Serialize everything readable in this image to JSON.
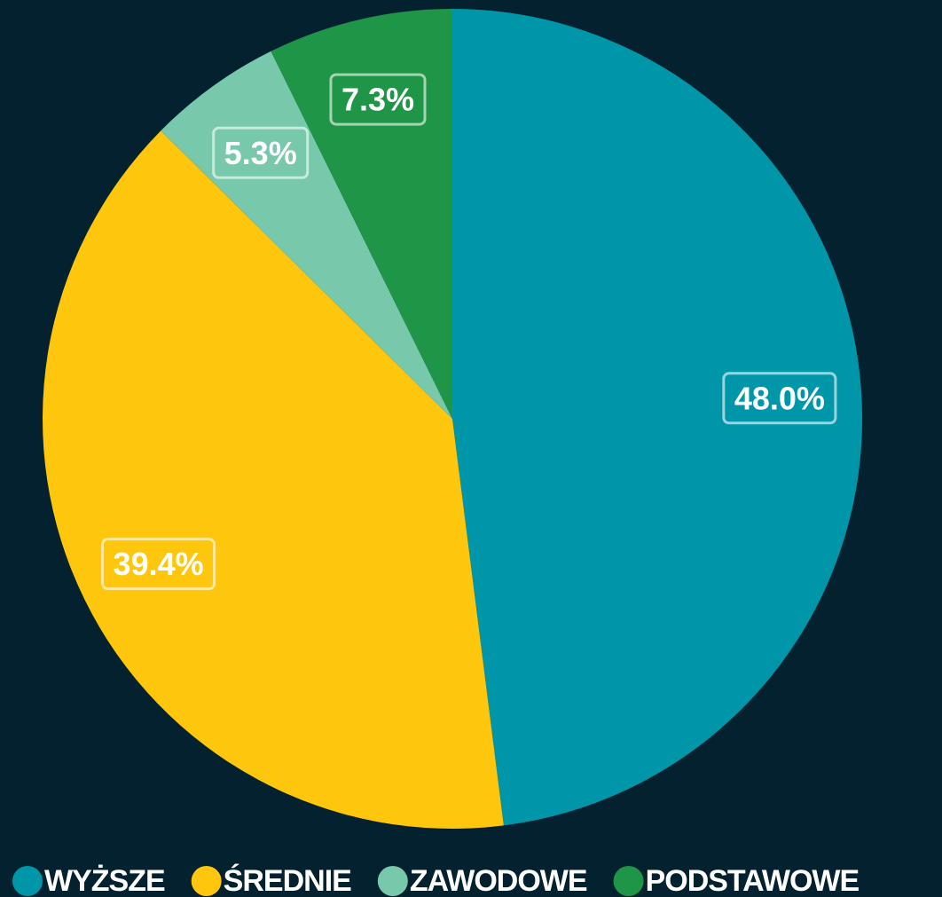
{
  "chart_data": {
    "type": "pie",
    "categories": [
      "WYŻSZE",
      "ŚREDNIE",
      "ZAWODOWE",
      "PODSTAWOWE"
    ],
    "values": [
      48.0,
      39.4,
      5.3,
      7.3
    ],
    "value_labels": [
      "48.0%",
      "39.4%",
      "5.3%",
      "7.3%"
    ],
    "colors": [
      "#0096a9",
      "#fec60d",
      "#78c8ac",
      "#1f9548"
    ],
    "legend": "bottom"
  }
}
